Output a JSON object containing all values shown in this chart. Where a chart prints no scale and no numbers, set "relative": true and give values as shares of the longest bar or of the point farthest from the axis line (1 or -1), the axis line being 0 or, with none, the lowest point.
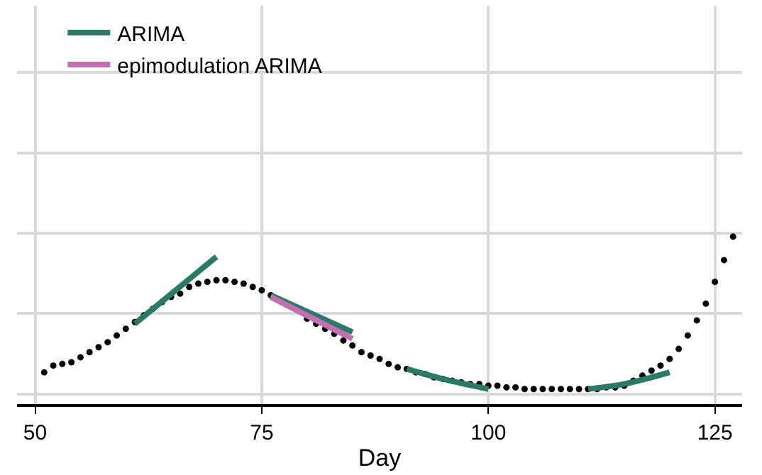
{
  "chart_data": {
    "type": "line",
    "xlabel": "Day",
    "relative": true,
    "xlim": [
      48,
      128
    ],
    "xticks": [
      50,
      75,
      100,
      125
    ],
    "grid": true,
    "legend": "top left",
    "series": [
      {
        "type": "scatter",
        "marker": "circle",
        "color": "#000000",
        "x": [
          51,
          52,
          53,
          54,
          55,
          56,
          57,
          58,
          59,
          60,
          61,
          62,
          63,
          64,
          65,
          66,
          67,
          68,
          69,
          70,
          71,
          72,
          73,
          74,
          75,
          76,
          77,
          78,
          79,
          80,
          81,
          82,
          83,
          84,
          85,
          86,
          87,
          88,
          89,
          90,
          91,
          92,
          93,
          94,
          95,
          96,
          97,
          98,
          99,
          100,
          101,
          102,
          103,
          104,
          105,
          106,
          107,
          108,
          109,
          110,
          111,
          112,
          113,
          114,
          115,
          116,
          117,
          118,
          119,
          120,
          121,
          122,
          123,
          124,
          125,
          126,
          127
        ],
        "values": [
          0.19,
          0.23,
          0.24,
          0.25,
          0.28,
          0.31,
          0.34,
          0.37,
          0.41,
          0.45,
          0.49,
          0.53,
          0.57,
          0.61,
          0.64,
          0.66,
          0.7,
          0.72,
          0.73,
          0.74,
          0.74,
          0.73,
          0.72,
          0.7,
          0.68,
          0.65,
          null,
          null,
          null,
          0.51,
          0.48,
          0.45,
          0.42,
          0.38,
          0.35,
          0.31,
          0.29,
          0.27,
          0.24,
          0.22,
          0.21,
          0.19,
          0.18,
          0.16,
          0.15,
          0.14,
          0.13,
          0.12,
          0.12,
          0.11,
          0.11,
          0.1,
          0.1,
          0.09,
          0.09,
          0.09,
          0.09,
          0.09,
          0.09,
          0.09,
          0.09,
          0.09,
          0.1,
          0.1,
          0.11,
          0.14,
          0.17,
          0.2,
          0.23,
          0.27,
          0.33,
          0.41,
          0.5,
          0.6,
          0.73,
          0.86,
          1.0
        ]
      },
      {
        "name": "ARIMA",
        "color": "#2a7a66",
        "x": [
          61,
          70
        ],
        "values": [
          0.48,
          0.88
        ]
      },
      {
        "color": "#2a7a66",
        "x": [
          76,
          85
        ],
        "values": [
          0.65,
          0.43
        ]
      },
      {
        "color": "#2a7a66",
        "x": [
          91,
          95,
          100
        ],
        "values": [
          0.21,
          0.15,
          0.09
        ]
      },
      {
        "color": "#2a7a66",
        "x": [
          111,
          115,
          120
        ],
        "values": [
          0.09,
          0.12,
          0.19
        ]
      },
      {
        "name": "epimodulation ARIMA",
        "color": "#c36fb1",
        "x": [
          76,
          85
        ],
        "values": [
          0.64,
          0.39
        ]
      }
    ]
  }
}
